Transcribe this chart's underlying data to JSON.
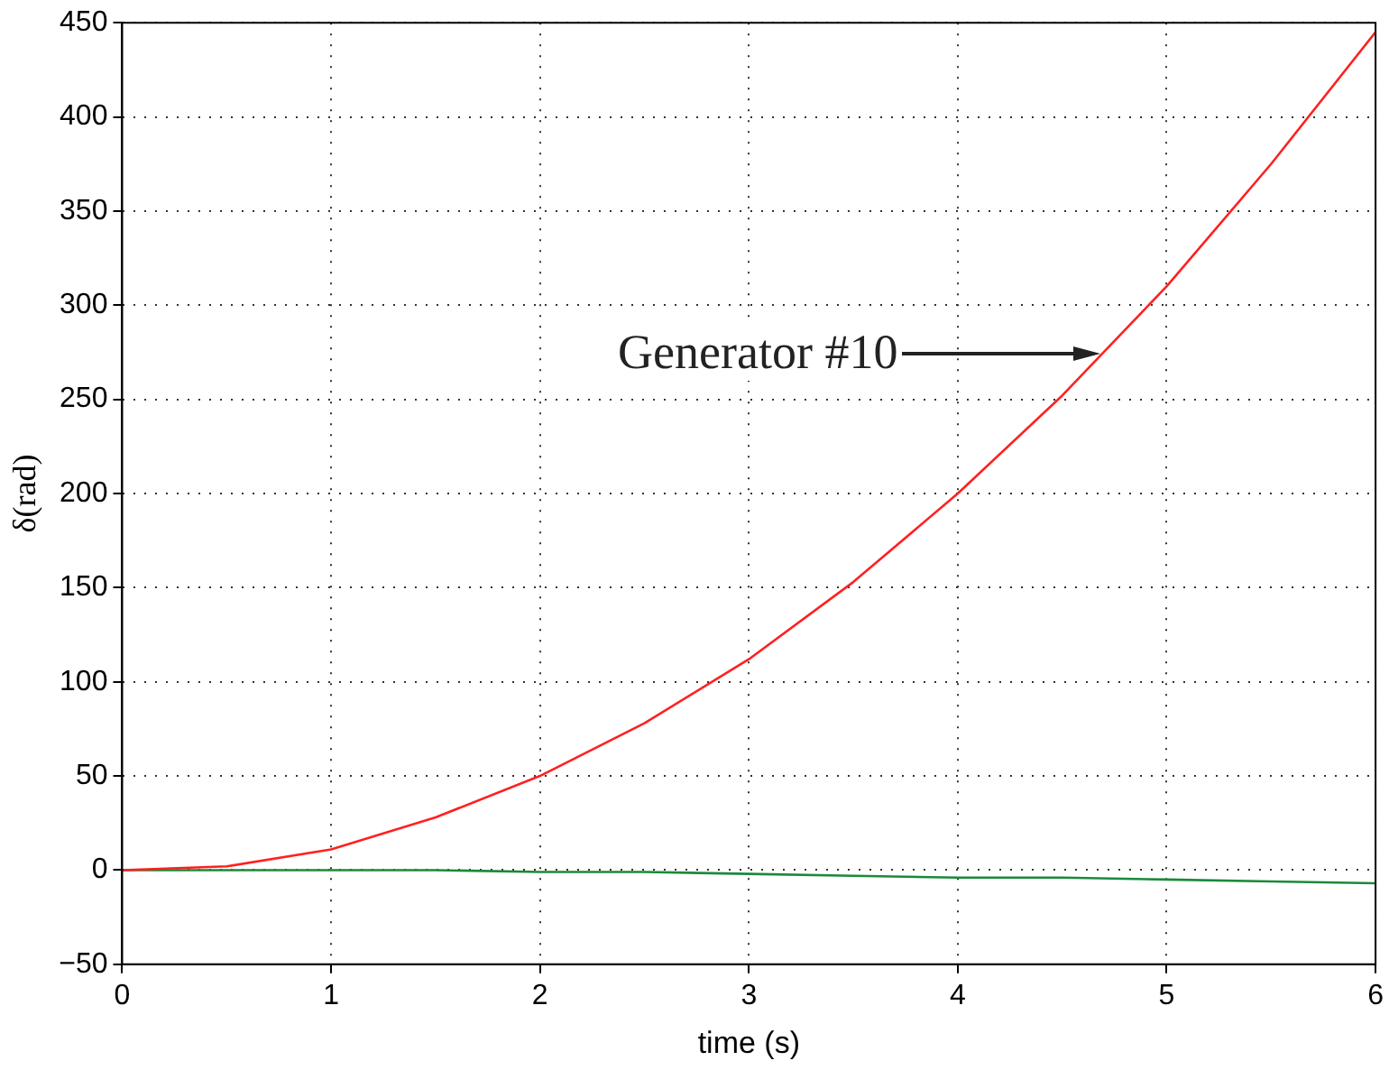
{
  "chart_data": {
    "type": "line",
    "xlabel": "time (s)",
    "ylabel": "δ(rad)",
    "xlim": [
      0,
      6
    ],
    "xticks": [
      0,
      1,
      2,
      3,
      4,
      5,
      6
    ],
    "ylim": [
      -50,
      450
    ],
    "yticks": [
      -50,
      0,
      50,
      100,
      150,
      200,
      250,
      300,
      350,
      400,
      450
    ],
    "grid": true,
    "legend": false,
    "marker": "none",
    "line_style": "solid",
    "x": [
      0,
      0.5,
      1,
      1.5,
      2,
      2.5,
      3,
      3.5,
      4,
      4.5,
      5,
      5.5,
      6
    ],
    "series": [
      {
        "color": "#ff2020",
        "values": [
          0,
          2,
          11,
          28,
          50,
          78,
          112,
          153,
          200,
          252,
          310,
          375,
          445
        ]
      },
      {
        "color": "#1a8a3a",
        "values": [
          0,
          0,
          0,
          0,
          -1,
          -1,
          -2,
          -3,
          -4,
          -4,
          -5,
          -6,
          -7
        ]
      }
    ],
    "annotations": [
      "Generator #10"
    ]
  }
}
